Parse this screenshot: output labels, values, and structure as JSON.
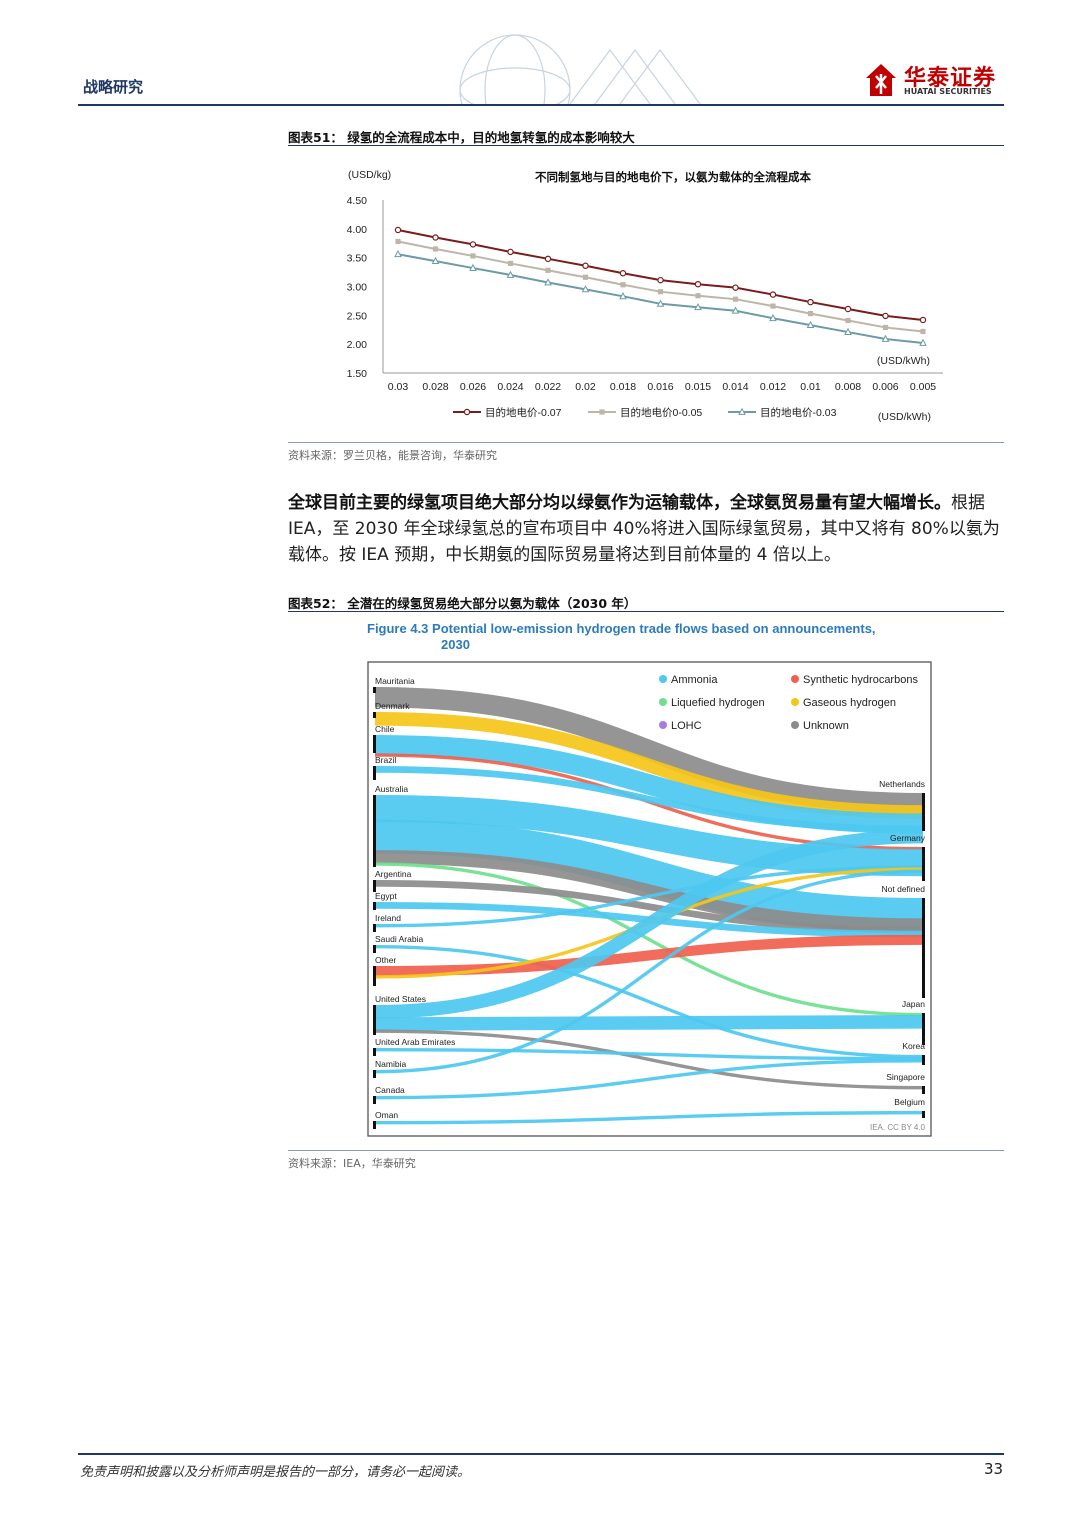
{
  "header": {
    "section": "战略研究",
    "logo_cn": "华泰证券",
    "logo_en": "HUATAI SECURITIES"
  },
  "figure51": {
    "label": "图表51： 绿氢的全流程成本中，目的地氢转氢的成本影响较大",
    "source": "资料来源：罗兰贝格，能景咨询，华泰研究"
  },
  "body": {
    "lead": "全球目前主要的绿氢项目绝大部分均以绿氨作为运输载体，全球氨贸易量有望大幅增长。",
    "text": "根据 IEA，至 2030 年全球绿氢总的宣布项目中 40%将进入国际绿氢贸易，其中又将有 80%以氨为载体。按 IEA 预期，中长期氨的国际贸易量将达到目前体量的 4 倍以上。"
  },
  "figure52": {
    "label": "图表52： 全潜在的绿氢贸易绝大部分以氨为载体（2030 年）",
    "source": "资料来源：IEA，华泰研究"
  },
  "footer": {
    "disclaimer": "免责声明和披露以及分析师声明是报告的一部分，请务必一起阅读。",
    "page": "33"
  },
  "chart_data": [
    {
      "type": "line",
      "title": "不同制氢地与目的地电价下，以氨为载体的全流程成本",
      "ylabel": "(USD/kg)",
      "xlabel": "(USD/kWh)",
      "xlabel_bottom": "(USD/kWh)",
      "categories": [
        "0.03",
        "0.028",
        "0.026",
        "0.024",
        "0.022",
        "0.02",
        "0.018",
        "0.016",
        "0.015",
        "0.014",
        "0.012",
        "0.01",
        "0.008",
        "0.006",
        "0.005"
      ],
      "yticks": [
        "1.50",
        "2.00",
        "2.50",
        "3.00",
        "3.50",
        "4.00",
        "4.50"
      ],
      "ylim": [
        1.5,
        4.5
      ],
      "grid": false,
      "legend_position": "bottom",
      "series": [
        {
          "name": "目的地电价-0.07",
          "color": "#7b1c1c",
          "marker": "circle",
          "values": [
            3.98,
            3.85,
            3.73,
            3.6,
            3.48,
            3.36,
            3.23,
            3.11,
            3.04,
            2.98,
            2.86,
            2.73,
            2.61,
            2.49,
            2.42
          ]
        },
        {
          "name": "目的地电价0-0.05",
          "color": "#bdb6a8",
          "marker": "square",
          "values": [
            3.78,
            3.65,
            3.53,
            3.4,
            3.28,
            3.16,
            3.03,
            2.91,
            2.84,
            2.78,
            2.66,
            2.53,
            2.41,
            2.29,
            2.22
          ]
        },
        {
          "name": "目的地电价-0.03",
          "color": "#6d9aa8",
          "marker": "triangle",
          "values": [
            3.56,
            3.44,
            3.32,
            3.2,
            3.07,
            2.95,
            2.83,
            2.7,
            2.64,
            2.58,
            2.45,
            2.33,
            2.21,
            2.09,
            2.02
          ]
        }
      ]
    },
    {
      "type": "sankey",
      "title": "Figure 4.3  Potential low-emission hydrogen trade flows based on announcements, 2030",
      "title_line1": "Figure 4.3  Potential low-emission hydrogen trade flows based on announcements,",
      "title_line2": "2030",
      "credit": "IEA. CC BY 4.0",
      "sources": [
        "Mauritania",
        "Denmark",
        "Chile",
        "Brazil",
        "Australia",
        "Argentina",
        "Egypt",
        "Ireland",
        "Saudi Arabia",
        "Other",
        "United States",
        "United Arab Emirates",
        "Namibia",
        "Canada",
        "Oman"
      ],
      "destinations": [
        "Netherlands",
        "Germany",
        "Not defined",
        "Japan",
        "Korea",
        "Singapore",
        "Belgium"
      ],
      "legend": [
        {
          "name": "Ammonia",
          "color": "#4dc8f0"
        },
        {
          "name": "Synthetic hydrocarbons",
          "color": "#f0604d"
        },
        {
          "name": "Liquefied hydrogen",
          "color": "#6ee08e"
        },
        {
          "name": "Gaseous hydrogen",
          "color": "#f5c518"
        },
        {
          "name": "LOHC",
          "color": "#a77be0"
        },
        {
          "name": "Unknown",
          "color": "#8c8c8c"
        }
      ],
      "flows": [
        {
          "from": "Mauritania",
          "to": "Netherlands",
          "carrier": "Unknown",
          "value": 6
        },
        {
          "from": "Denmark",
          "to": "Netherlands",
          "carrier": "Gaseous hydrogen",
          "value": 4
        },
        {
          "from": "Chile",
          "to": "Netherlands",
          "carrier": "Ammonia",
          "value": 6
        },
        {
          "from": "Chile",
          "to": "Germany",
          "carrier": "Synthetic hydrocarbons",
          "value": 1
        },
        {
          "from": "Brazil",
          "to": "Netherlands",
          "carrier": "Ammonia",
          "value": 2
        },
        {
          "from": "Australia",
          "to": "Germany",
          "carrier": "Ammonia",
          "value": 8
        },
        {
          "from": "Australia",
          "to": "Not defined",
          "carrier": "Ammonia",
          "value": 10
        },
        {
          "from": "Australia",
          "to": "Not defined",
          "carrier": "Unknown",
          "value": 4
        },
        {
          "from": "Australia",
          "to": "Japan",
          "carrier": "Liquefied hydrogen",
          "value": 1
        },
        {
          "from": "Argentina",
          "to": "Not defined",
          "carrier": "Unknown",
          "value": 2
        },
        {
          "from": "Egypt",
          "to": "Not defined",
          "carrier": "Ammonia",
          "value": 2
        },
        {
          "from": "Ireland",
          "to": "Germany",
          "carrier": "Ammonia",
          "value": 1
        },
        {
          "from": "Saudi Arabia",
          "to": "Korea",
          "carrier": "Ammonia",
          "value": 1
        },
        {
          "from": "Other",
          "to": "Not defined",
          "carrier": "Synthetic hydrocarbons",
          "value": 3
        },
        {
          "from": "Other",
          "to": "Germany",
          "carrier": "Gaseous hydrogen",
          "value": 1
        },
        {
          "from": "United States",
          "to": "Netherlands",
          "carrier": "Ammonia",
          "value": 4
        },
        {
          "from": "United States",
          "to": "Japan",
          "carrier": "Ammonia",
          "value": 4
        },
        {
          "from": "United States",
          "to": "Singapore",
          "carrier": "Unknown",
          "value": 1
        },
        {
          "from": "United Arab Emirates",
          "to": "Korea",
          "carrier": "Ammonia",
          "value": 1
        },
        {
          "from": "Namibia",
          "to": "Germany",
          "carrier": "Ammonia",
          "value": 1
        },
        {
          "from": "Canada",
          "to": "Korea",
          "carrier": "Ammonia",
          "value": 1
        },
        {
          "from": "Oman",
          "to": "Belgium",
          "carrier": "Ammonia",
          "value": 1
        }
      ]
    }
  ]
}
